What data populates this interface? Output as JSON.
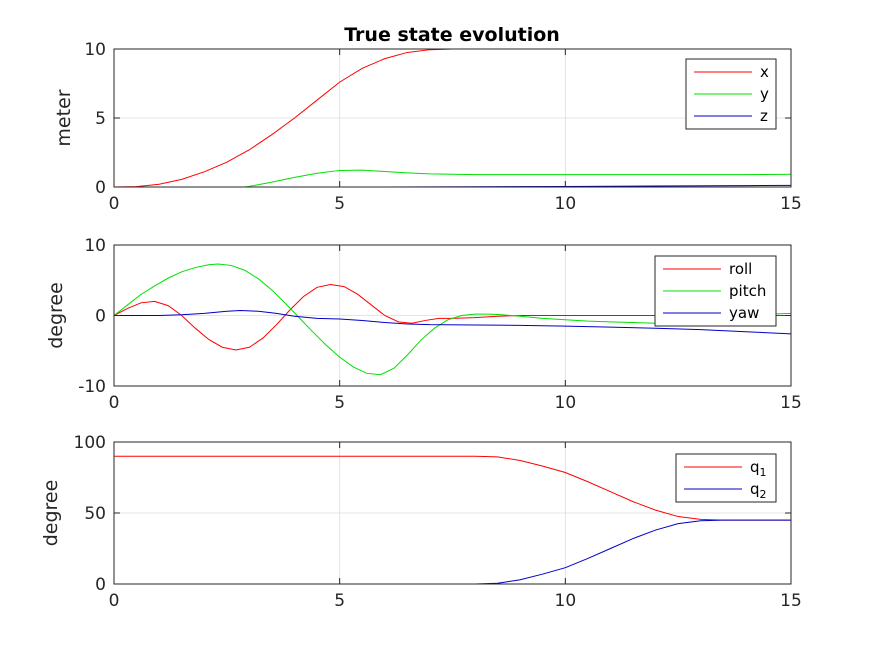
{
  "figure_title": "True state evolution",
  "chart_data": [
    {
      "type": "line",
      "title": "True state evolution",
      "xlabel": "",
      "ylabel": "meter",
      "xlim": [
        0,
        15
      ],
      "ylim": [
        0,
        10
      ],
      "xticks": [
        0,
        5,
        10,
        15
      ],
      "yticks": [
        0,
        5,
        10
      ],
      "grid": true,
      "legend_position": "top-right",
      "series": [
        {
          "name": "x",
          "color": "#ff0000",
          "x": [
            0,
            0.5,
            1,
            1.5,
            2,
            2.5,
            3,
            3.5,
            4,
            4.5,
            5,
            5.5,
            6,
            6.5,
            7,
            7.5,
            8,
            9,
            10,
            11,
            12,
            13,
            14,
            15
          ],
          "y": [
            0,
            0.03,
            0.2,
            0.55,
            1.1,
            1.8,
            2.7,
            3.8,
            5.0,
            6.3,
            7.6,
            8.6,
            9.3,
            9.75,
            9.95,
            10.0,
            10.0,
            10.0,
            10.0,
            10.0,
            10.05,
            10.05,
            10.05,
            10.05
          ]
        },
        {
          "name": "y",
          "color": "#00e000",
          "x": [
            0,
            0.5,
            1,
            1.5,
            2,
            2.5,
            3,
            3.5,
            4,
            4.5,
            5,
            5.5,
            6,
            6.5,
            7,
            7.5,
            8,
            9,
            10,
            11,
            12,
            13,
            14,
            15
          ],
          "y": [
            0,
            -0.02,
            -0.1,
            -0.18,
            -0.22,
            -0.18,
            0.05,
            0.35,
            0.7,
            1.0,
            1.2,
            1.22,
            1.12,
            1.02,
            0.95,
            0.92,
            0.9,
            0.9,
            0.9,
            0.9,
            0.9,
            0.9,
            0.9,
            0.92
          ]
        },
        {
          "name": "z",
          "color": "#0000c8",
          "x": [
            0,
            2,
            4,
            6,
            8,
            10,
            12,
            14,
            15
          ],
          "y": [
            0,
            0,
            0,
            0,
            0.02,
            0.04,
            0.07,
            0.1,
            0.12
          ]
        }
      ]
    },
    {
      "type": "line",
      "title": "",
      "xlabel": "",
      "ylabel": "degree",
      "xlim": [
        0,
        15
      ],
      "ylim": [
        -10,
        10
      ],
      "xticks": [
        0,
        5,
        10,
        15
      ],
      "yticks": [
        -10,
        0,
        10
      ],
      "grid": true,
      "legend_position": "top-right",
      "series": [
        {
          "name": "roll",
          "color": "#ff0000",
          "x": [
            0,
            0.3,
            0.6,
            0.9,
            1.2,
            1.5,
            1.8,
            2.1,
            2.4,
            2.7,
            3.0,
            3.3,
            3.6,
            3.9,
            4.2,
            4.5,
            4.8,
            5.1,
            5.4,
            5.7,
            6.0,
            6.3,
            6.6,
            6.9,
            7.2,
            7.5,
            8.0,
            8.5,
            9,
            10,
            11,
            12,
            13,
            14,
            15
          ],
          "y": [
            0,
            1.0,
            1.8,
            2.0,
            1.4,
            0,
            -1.8,
            -3.4,
            -4.5,
            -4.9,
            -4.5,
            -3.2,
            -1.3,
            0.8,
            2.7,
            4.0,
            4.4,
            4.1,
            3.0,
            1.5,
            0,
            -0.9,
            -1.1,
            -0.7,
            -0.4,
            -0.4,
            -0.3,
            -0.1,
            0,
            0,
            0,
            0,
            0,
            0,
            0
          ]
        },
        {
          "name": "pitch",
          "color": "#00e000",
          "x": [
            0,
            0.3,
            0.6,
            0.9,
            1.2,
            1.5,
            1.8,
            2.1,
            2.3,
            2.6,
            2.9,
            3.2,
            3.5,
            3.8,
            4.1,
            4.4,
            4.7,
            5.0,
            5.3,
            5.6,
            5.9,
            6.2,
            6.5,
            6.8,
            7.1,
            7.4,
            7.7,
            8.0,
            8.3,
            8.6,
            9.0,
            9.5,
            10,
            10.5,
            11,
            11.5,
            12,
            12.5,
            13,
            13.5,
            14,
            14.5,
            15
          ],
          "y": [
            0,
            1.5,
            3.0,
            4.2,
            5.3,
            6.2,
            6.8,
            7.2,
            7.3,
            7.1,
            6.4,
            5.2,
            3.6,
            1.7,
            -0.3,
            -2.3,
            -4.2,
            -5.9,
            -7.3,
            -8.2,
            -8.4,
            -7.5,
            -5.6,
            -3.5,
            -1.8,
            -0.6,
            0,
            0.2,
            0.2,
            0.1,
            -0.1,
            -0.4,
            -0.6,
            -0.8,
            -0.9,
            -1.0,
            -1.1,
            -1.0,
            -0.6,
            -0.2,
            0,
            0.2,
            0.3
          ]
        },
        {
          "name": "yaw",
          "color": "#0000c8",
          "x": [
            0,
            0.5,
            1,
            1.5,
            2,
            2.5,
            2.8,
            3.2,
            3.6,
            4,
            4.5,
            5,
            5.5,
            6,
            6.5,
            7,
            8,
            9,
            10,
            11,
            12,
            13,
            14,
            15
          ],
          "y": [
            0,
            0,
            0,
            0.1,
            0.3,
            0.6,
            0.7,
            0.6,
            0.3,
            -0.1,
            -0.4,
            -0.5,
            -0.7,
            -1.0,
            -1.2,
            -1.3,
            -1.35,
            -1.4,
            -1.5,
            -1.65,
            -1.8,
            -2.0,
            -2.3,
            -2.6
          ]
        }
      ]
    },
    {
      "type": "line",
      "title": "",
      "xlabel": "",
      "ylabel": "degree",
      "xlim": [
        0,
        15
      ],
      "ylim": [
        0,
        100
      ],
      "xticks": [
        0,
        5,
        10,
        15
      ],
      "yticks": [
        0,
        50,
        100
      ],
      "grid": true,
      "legend_position": "top-right",
      "series": [
        {
          "name": "q",
          "subscript": "1",
          "color": "#ff0000",
          "x": [
            0,
            2,
            4,
            6,
            8,
            8.5,
            9,
            9.5,
            10,
            10.5,
            11,
            11.5,
            12,
            12.5,
            13,
            13.5,
            14,
            15
          ],
          "y": [
            90,
            90,
            90,
            90,
            90,
            89.5,
            87,
            83,
            78.5,
            72,
            65,
            58,
            52,
            47.5,
            45.5,
            45,
            45,
            45
          ]
        },
        {
          "name": "q",
          "subscript": "2",
          "color": "#0000c8",
          "x": [
            0,
            2,
            4,
            6,
            8,
            8.5,
            9,
            9.5,
            10,
            10.5,
            11,
            11.5,
            12,
            12.5,
            13,
            13.5,
            14,
            15
          ],
          "y": [
            0,
            0,
            0,
            0,
            0,
            0.5,
            3,
            7,
            11.5,
            18,
            25,
            32,
            38,
            42.5,
            44.5,
            45,
            45,
            45
          ]
        }
      ]
    }
  ]
}
